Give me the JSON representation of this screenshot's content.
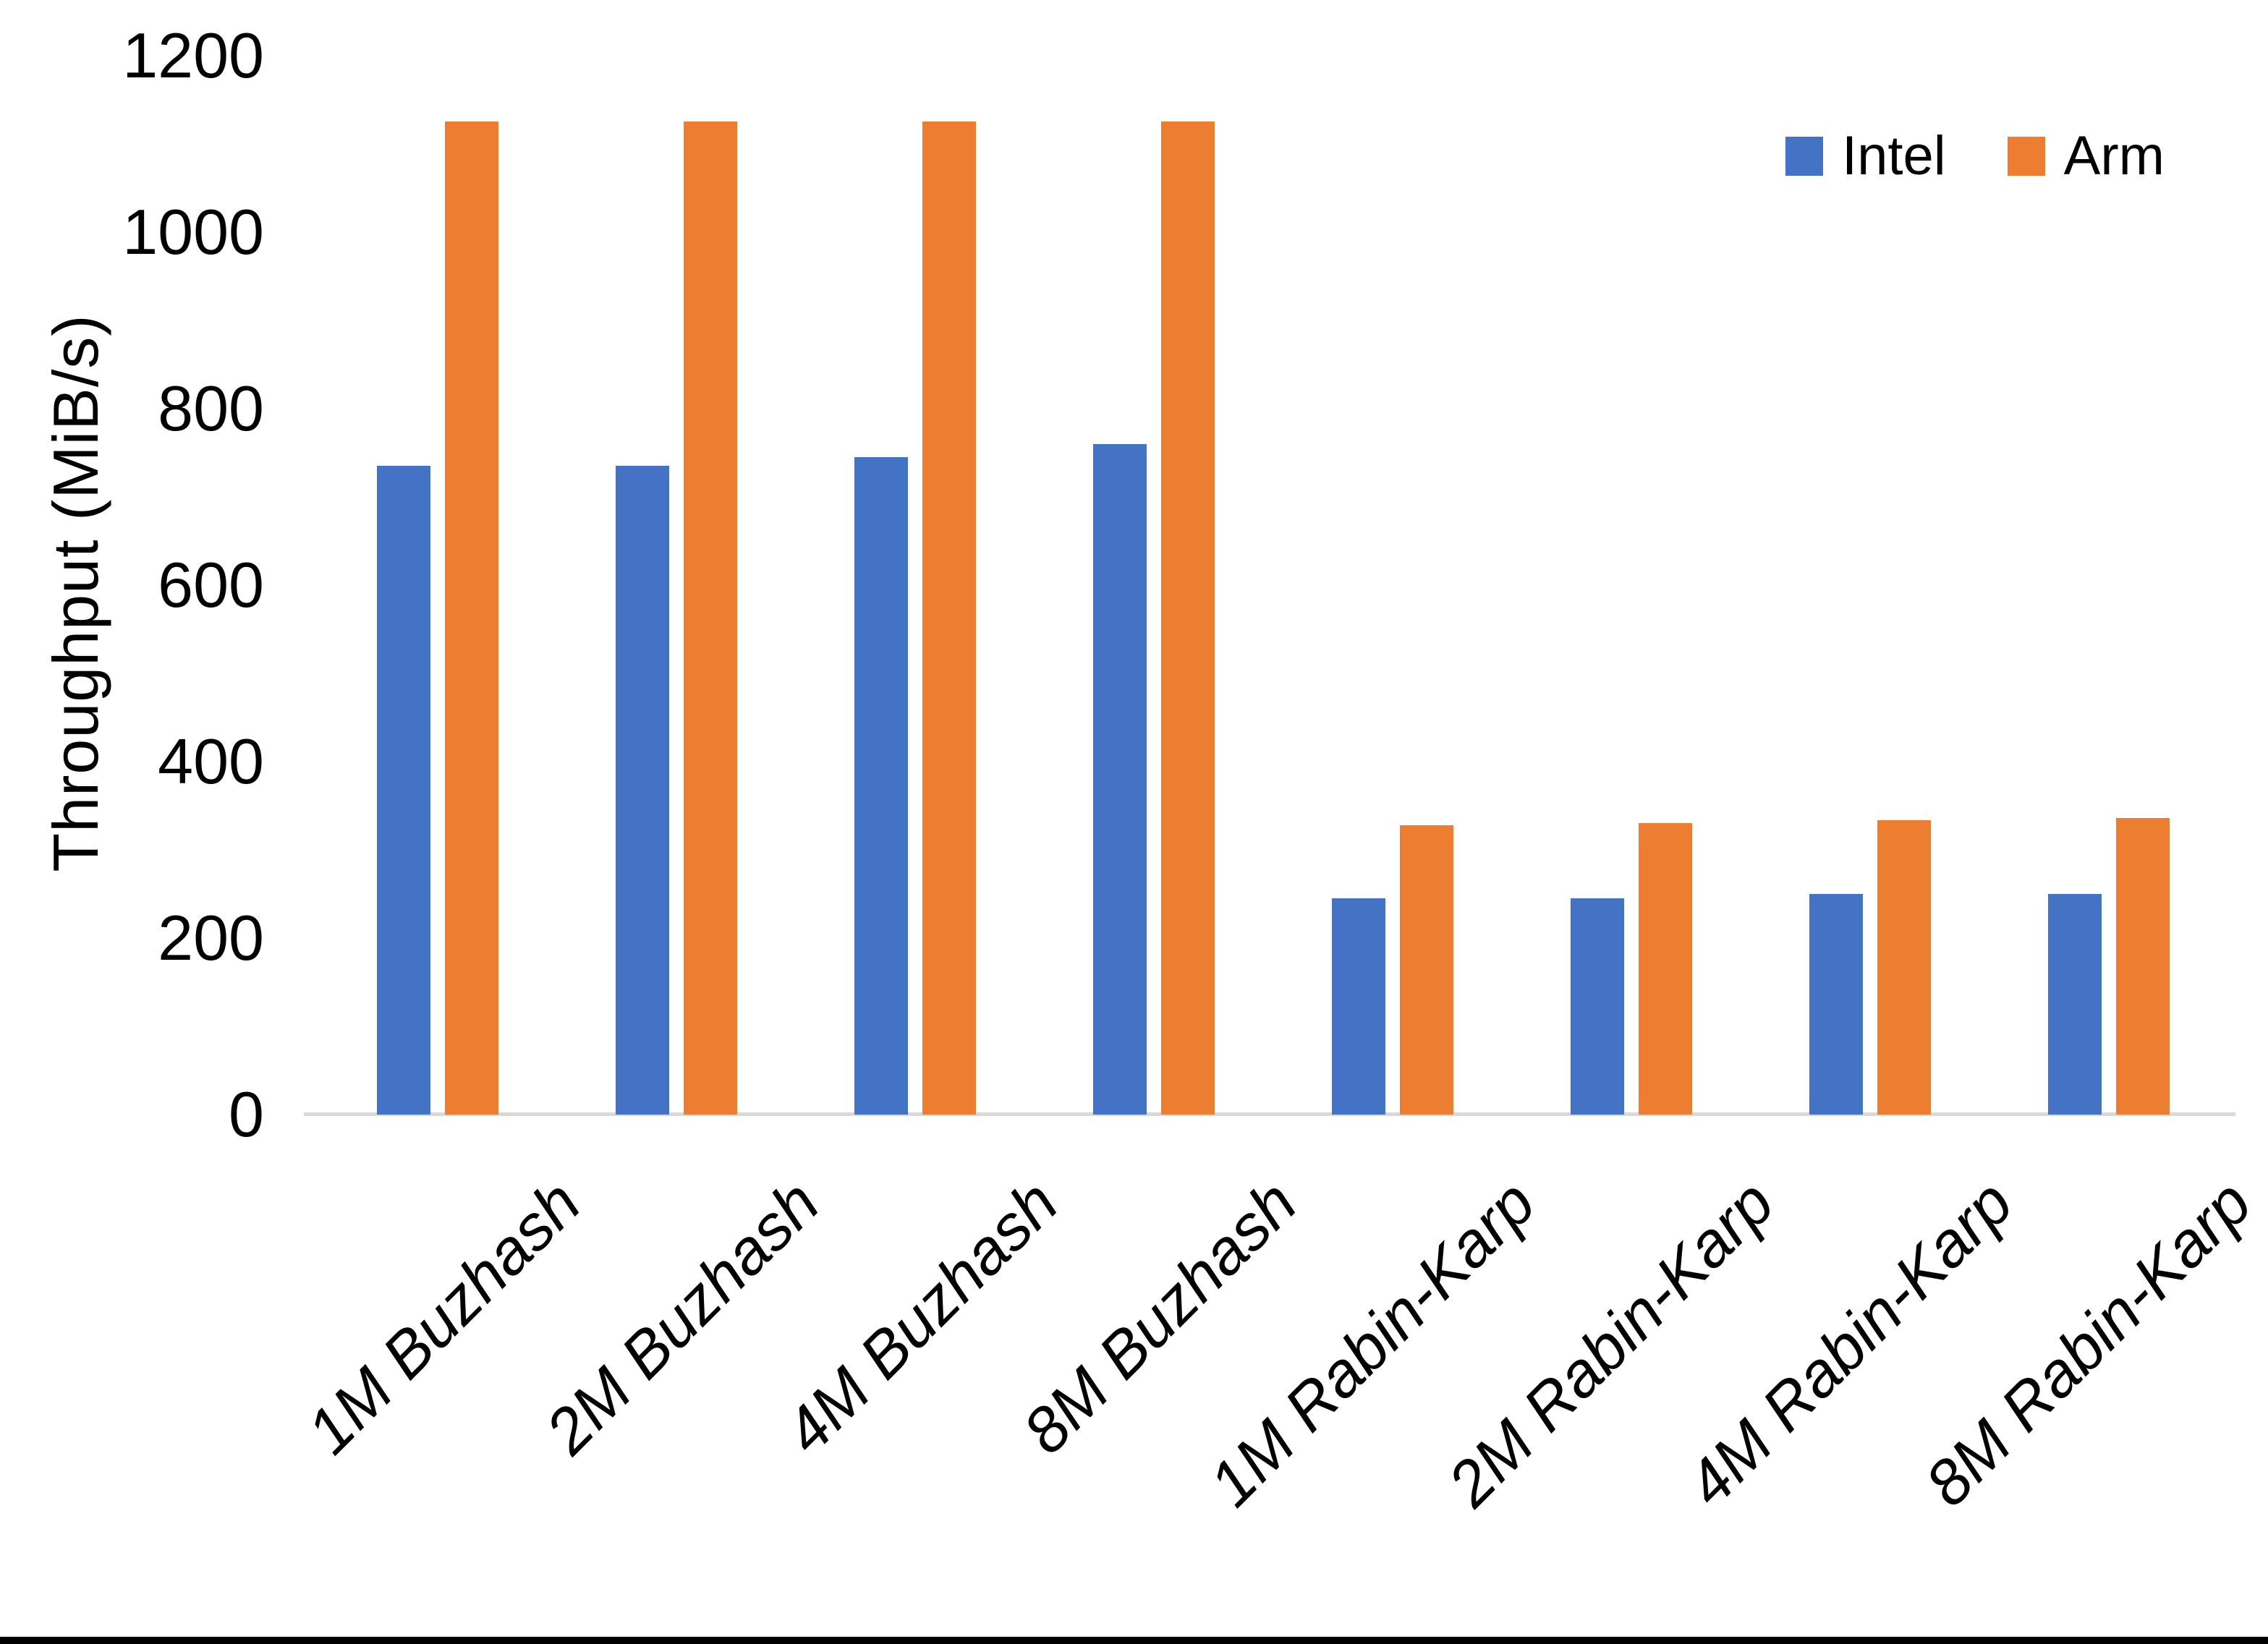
{
  "chart_data": {
    "type": "bar",
    "title": "",
    "categories": [
      "1M Buzhash",
      "2M Buzhash",
      "4M Buzhash",
      "8M Buzhash",
      "1M Rabin-Karp",
      "2M Rabin-Karp",
      "4M Rabin-Karp",
      "8M Rabin-Karp"
    ],
    "series": [
      {
        "name": "Intel",
        "color": "#4472C4",
        "values": [
          735,
          735,
          745,
          760,
          245,
          245,
          250,
          250
        ]
      },
      {
        "name": "Arm",
        "color": "#ED7D31",
        "values": [
          1125,
          1125,
          1125,
          1125,
          328,
          330,
          334,
          336
        ]
      }
    ],
    "xlabel": "",
    "ylabel": "Throughput (MiB/s)",
    "ylim": [
      0,
      1200
    ],
    "yticks": [
      0,
      200,
      400,
      600,
      800,
      1000,
      1200
    ],
    "grid": false,
    "legend_position": "top-right",
    "colors": {
      "axis_line": "#d9d9d9",
      "text": "#000000",
      "background": "#ffffff",
      "bottom_edge_bar": "#000000"
    }
  }
}
